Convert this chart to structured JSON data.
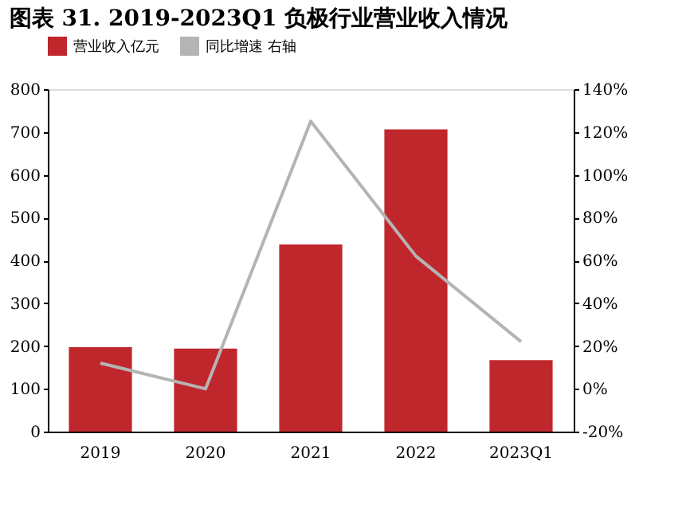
{
  "chart_data": {
    "type": "bar",
    "title": "图表 31. 2019-2023Q1 负极行业营业收入情况",
    "categories": [
      "2019",
      "2020",
      "2021",
      "2022",
      "2023Q1"
    ],
    "series": [
      {
        "name": "营业收入亿元",
        "color": "#c0272d",
        "values": [
          197,
          194,
          437,
          706,
          167
        ]
      },
      {
        "name": "同比增速 右轴",
        "color": "#b4b4b4",
        "type": "line",
        "axis": "y2",
        "values": [
          12,
          0,
          125,
          62,
          22
        ]
      }
    ],
    "ylim": [
      0,
      800
    ],
    "yticks": [
      0,
      100,
      200,
      300,
      400,
      500,
      600,
      700,
      800
    ],
    "y2lim": [
      -20,
      140
    ],
    "y2ticks": [
      {
        "value": -20,
        "label": "-20%"
      },
      {
        "value": 0,
        "label": "0%"
      },
      {
        "value": 20,
        "label": "20%"
      },
      {
        "value": 40,
        "label": "40%"
      },
      {
        "value": 60,
        "label": "60%"
      },
      {
        "value": 80,
        "label": "80%"
      },
      {
        "value": 100,
        "label": "100%"
      },
      {
        "value": 120,
        "label": "120%"
      },
      {
        "value": 140,
        "label": "140%"
      }
    ],
    "legend": "top",
    "grid": false
  }
}
